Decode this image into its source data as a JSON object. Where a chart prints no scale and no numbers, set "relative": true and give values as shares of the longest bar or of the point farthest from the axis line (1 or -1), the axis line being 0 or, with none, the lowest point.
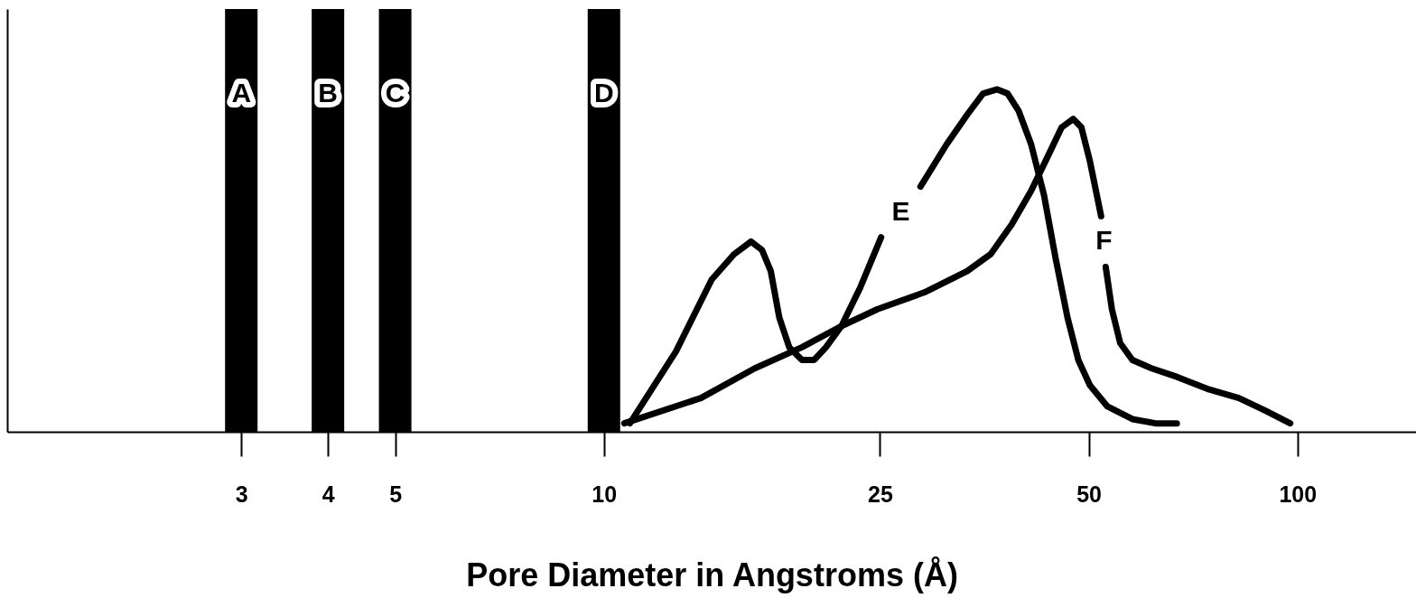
{
  "chart_data": {
    "type": "line",
    "relative": true,
    "xlabel": "Pore Diameter in Angstroms (Å)",
    "xlim": [
      1.4,
      146
    ],
    "log": "x",
    "xticks": [
      3,
      4,
      5,
      10,
      25,
      50,
      100
    ],
    "grid": false,
    "marker": "none",
    "line_style": "solid",
    "series": [
      {
        "name": "A",
        "type": "bar",
        "color": "#000000",
        "x": [
          3
        ],
        "values": [
          1
        ]
      },
      {
        "name": "B",
        "type": "bar",
        "color": "#000000",
        "x": [
          4
        ],
        "values": [
          1
        ]
      },
      {
        "name": "C",
        "type": "bar",
        "color": "#000000",
        "x": [
          5
        ],
        "values": [
          1
        ]
      },
      {
        "name": "D",
        "type": "bar",
        "color": "#000000",
        "x": [
          10
        ],
        "values": [
          1
        ]
      },
      {
        "name": "E",
        "color": "#000000",
        "x": [
          10.9,
          12.7,
          14.3,
          15.4,
          16.3,
          16.9,
          17.4,
          17.9,
          18.5,
          19.3,
          20.1,
          20.9,
          22.0,
          23.4,
          25.1,
          26.8,
          28.6,
          31.2,
          33.4,
          35.2,
          36.9,
          38.2,
          39.6,
          41.3,
          43.1,
          44.8,
          46.6,
          48.3,
          50.2,
          53.2,
          57.8,
          62.4,
          67.0
        ],
        "values": [
          0.02,
          0.19,
          0.36,
          0.42,
          0.45,
          0.43,
          0.38,
          0.27,
          0.2,
          0.17,
          0.17,
          0.2,
          0.25,
          0.34,
          0.46,
          null,
          0.58,
          0.68,
          0.75,
          0.8,
          0.81,
          0.8,
          0.76,
          0.68,
          0.56,
          0.41,
          0.27,
          0.17,
          0.11,
          0.06,
          0.03,
          0.02,
          0.02
        ]
      },
      {
        "name": "F",
        "color": "#000000",
        "x": [
          10.7,
          13.8,
          16.5,
          19.3,
          22.0,
          24.8,
          29.0,
          33.4,
          36.1,
          38.7,
          41.3,
          43.9,
          45.7,
          47.5,
          48.8,
          50.2,
          52.1,
          52.6,
          52.9,
          54.0,
          55.5,
          57.8,
          61.6,
          67.0,
          74.6,
          82.3,
          89.9,
          97.6
        ],
        "values": [
          0.02,
          0.08,
          0.15,
          0.2,
          0.25,
          0.29,
          0.33,
          0.38,
          0.42,
          0.49,
          0.57,
          0.66,
          0.72,
          0.74,
          0.72,
          0.64,
          0.51,
          null,
          0.39,
          0.29,
          0.21,
          0.17,
          0.15,
          0.13,
          0.1,
          0.08,
          0.05,
          0.02
        ]
      }
    ]
  }
}
